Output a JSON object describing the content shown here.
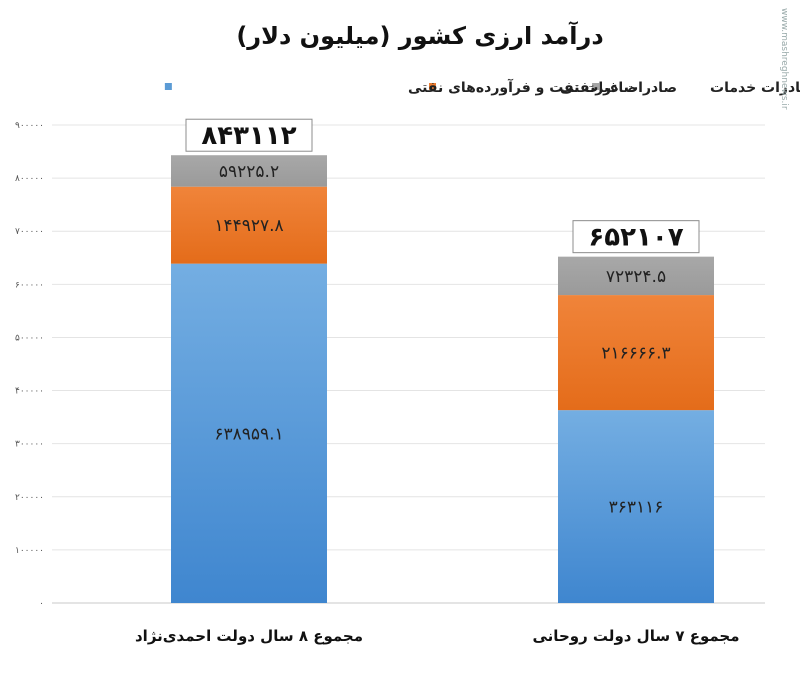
{
  "chart_data": {
    "type": "bar",
    "stacked": true,
    "title": "درآمد ارزی کشور (میلیون دلار)",
    "categories": [
      "مجموع ۸ سال دولت احمدی‌نژاد",
      "مجموع ۷ سال دولت روحانی"
    ],
    "series": [
      {
        "name": "صادرات نفت و فرآورده‌های نفتی",
        "color": "#5b9bd5",
        "values": [
          638959.1,
          363116
        ],
        "labels": [
          "۶۳۸۹۵۹.۱",
          "۳۶۳۱۱۶"
        ]
      },
      {
        "name": "صادرات غیرنفتی",
        "color": "#ed7d31",
        "values": [
          144927.8,
          216666.3
        ],
        "labels": [
          "۱۴۴۹۲۷.۸",
          "۲۱۶۶۶۶.۳"
        ]
      },
      {
        "name": "صادرات خدمات",
        "color": "#a5a5a5",
        "values": [
          59225.2,
          72324.5
        ],
        "labels": [
          "۵۹۲۲۵.۲",
          "۷۲۳۲۴.۵"
        ]
      }
    ],
    "totals": [
      843112,
      652107
    ],
    "total_labels": [
      "۸۴۳۱۱۲",
      "۶۵۲۱۰۷"
    ],
    "ylim": [
      0,
      900000
    ],
    "yticks": [
      0,
      100000,
      200000,
      300000,
      400000,
      500000,
      600000,
      700000,
      800000,
      900000
    ],
    "ytick_labels": [
      "۰",
      "۱۰۰۰۰۰",
      "۲۰۰۰۰۰",
      "۳۰۰۰۰۰",
      "۴۰۰۰۰۰",
      "۵۰۰۰۰۰",
      "۶۰۰۰۰۰",
      "۷۰۰۰۰۰",
      "۸۰۰۰۰۰",
      "۹۰۰۰۰۰"
    ],
    "grid": true,
    "legend_position": "top"
  },
  "watermark": "www.mashreghnews.ir"
}
